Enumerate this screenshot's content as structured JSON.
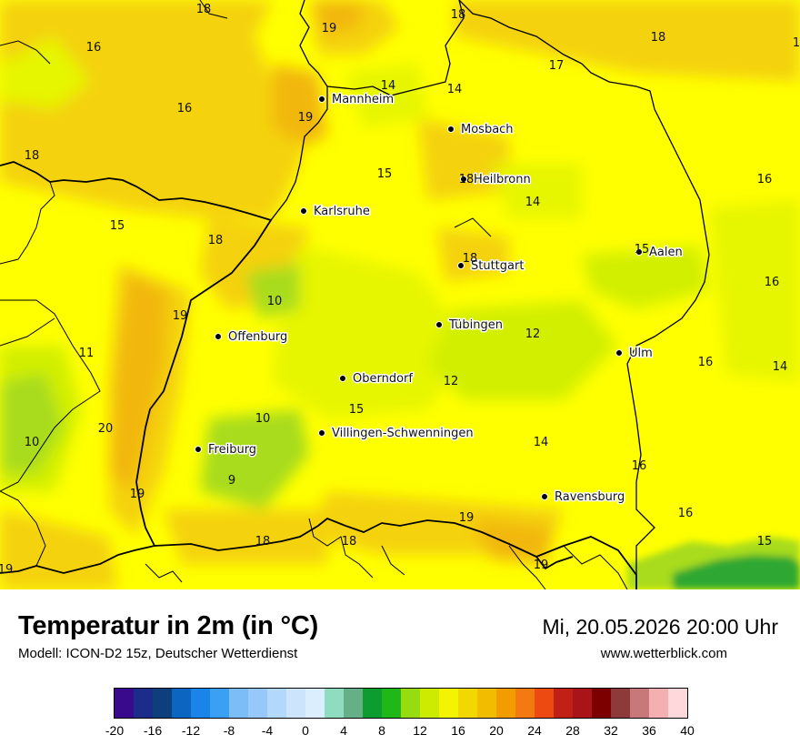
{
  "map": {
    "cities": [
      {
        "name": "Mannheim"
      },
      {
        "name": "Mosbach"
      },
      {
        "name": "Heilbronn"
      },
      {
        "name": "Karlsruhe"
      },
      {
        "name": "Stuttgart"
      },
      {
        "name": "Aalen"
      },
      {
        "name": "Offenburg"
      },
      {
        "name": "Tübingen"
      },
      {
        "name": "Ulm"
      },
      {
        "name": "Oberndorf"
      },
      {
        "name": "Villingen-Schwenningen"
      },
      {
        "name": "Freiburg"
      },
      {
        "name": "Ravensburg"
      }
    ],
    "temperature_labels": [
      "18",
      "19",
      "18",
      "18",
      "1",
      "16",
      "17",
      "14",
      "14",
      "16",
      "19",
      "18",
      "15",
      "18",
      "14",
      "16",
      "15",
      "18",
      "18",
      "15",
      "16",
      "10",
      "19",
      "12",
      "11",
      "16",
      "14",
      "12",
      "15",
      "10",
      "20",
      "14",
      "10",
      "9",
      "19",
      "16",
      "19",
      "18",
      "18",
      "16",
      "15",
      "19",
      "19"
    ],
    "colors": {
      "temp_10": "#a8dc1a",
      "temp_12": "#d2ef00",
      "temp_14": "#e6f500",
      "temp_16": "#ffff00",
      "temp_18": "#f4d20e",
      "temp_20": "#f2b710",
      "green_dark": "#2ea832",
      "border": "#000000"
    }
  },
  "footer": {
    "title": "Temperatur in 2m (in °C)",
    "model": "Modell: ICON-D2 15z, Deutscher Wetterdienst",
    "datetime": "Mi, 20.05.2026 20:00 Uhr",
    "website": "www.wetterblick.com"
  },
  "legend": {
    "colors": [
      "#3a0a8c",
      "#1b2c8a",
      "#0e3f7c",
      "#0a66c0",
      "#1a84e8",
      "#3aa0f4",
      "#7cbdf8",
      "#96c8fa",
      "#b2d8fc",
      "#cce4fc",
      "#dbeefe",
      "#8fdcc0",
      "#66b088",
      "#0c9c30",
      "#20b818",
      "#96dc10",
      "#cceb00",
      "#f4f402",
      "#f2d800",
      "#f2bc00",
      "#f29c00",
      "#f27a10",
      "#ec4a10",
      "#c02016",
      "#a81418",
      "#7c0000",
      "#8e3a3a",
      "#c87878",
      "#f4b0b0",
      "#ffd8dc"
    ],
    "ticks": [
      "-20",
      "-16",
      "-12",
      "-8",
      "-4",
      "0",
      "4",
      "8",
      "12",
      "16",
      "20",
      "24",
      "28",
      "32",
      "36",
      "40"
    ]
  }
}
